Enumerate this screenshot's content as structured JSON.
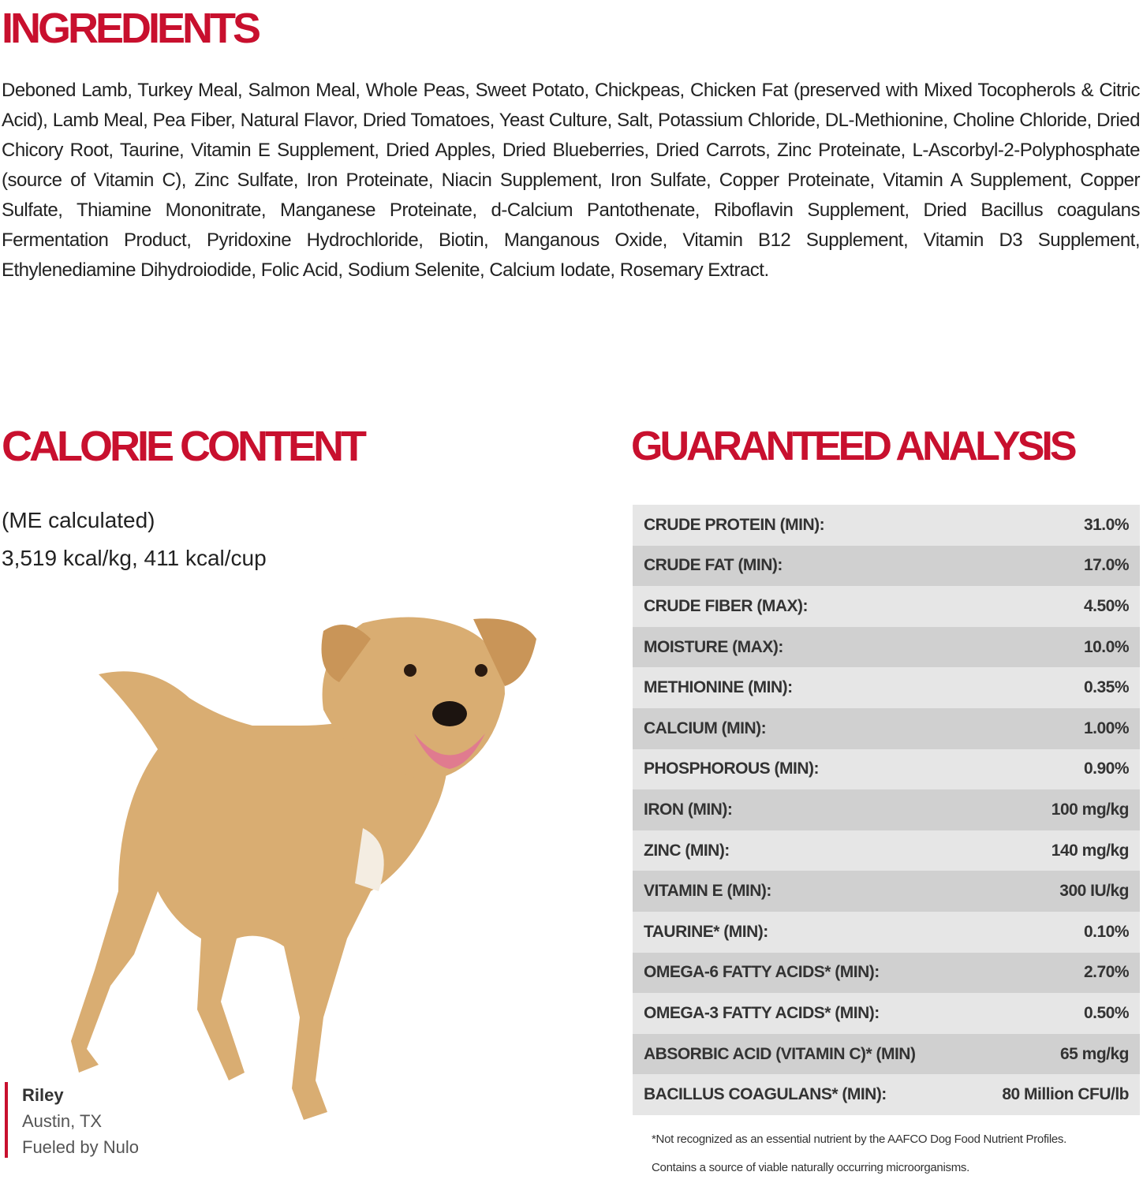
{
  "ingredients": {
    "title": "INGREDIENTS",
    "text": "Deboned Lamb, Turkey Meal, Salmon Meal, Whole Peas, Sweet Potato, Chickpeas, Chicken Fat (preserved with Mixed Tocopherols & Citric Acid), Lamb Meal, Pea Fiber, Natural Flavor, Dried Tomatoes, Yeast Culture, Salt, Potassium Chloride, DL-Methionine, Choline Chloride, Dried Chicory Root, Taurine, Vitamin E Supplement, Dried Apples, Dried Blueberries, Dried Carrots, Zinc Proteinate, L-Ascorbyl-2-Polyphosphate (source of Vitamin C), Zinc Sulfate, Iron Proteinate, Niacin Supplement, Iron Sulfate, Copper Proteinate, Vitamin A Supplement, Copper Sulfate, Thiamine Mononitrate, Manganese Proteinate, d-Calcium Pantothenate, Riboflavin Supplement, Dried Bacillus coagulans Fermentation Product, Pyridoxine Hydrochloride, Biotin, Manganous Oxide, Vitamin B12 Supplement, Vitamin D3 Supplement, Ethylenediamine Dihydroiodide, Folic Acid, Sodium Selenite, Calcium Iodate, Rosemary Extract."
  },
  "calorie": {
    "title": "CALORIE CONTENT",
    "line1": "(ME calculated)",
    "line2": "3,519 kcal/kg, 411 kcal/cup"
  },
  "analysis": {
    "title": "GUARANTEED ANALYSIS",
    "rows": [
      {
        "label": "CRUDE PROTEIN (MIN):",
        "value": "31.0%"
      },
      {
        "label": "CRUDE FAT (MIN):",
        "value": "17.0%"
      },
      {
        "label": "CRUDE FIBER (MAX):",
        "value": "4.50%"
      },
      {
        "label": "MOISTURE (MAX):",
        "value": "10.0%"
      },
      {
        "label": "METHIONINE (MIN):",
        "value": "0.35%"
      },
      {
        "label": "CALCIUM (MIN):",
        "value": "1.00%"
      },
      {
        "label": "PHOSPHOROUS (MIN):",
        "value": "0.90%"
      },
      {
        "label": "IRON (MIN):",
        "value": "100 mg/kg"
      },
      {
        "label": "ZINC (MIN):",
        "value": "140 mg/kg"
      },
      {
        "label": "VITAMIN E (MIN):",
        "value": "300 IU/kg"
      },
      {
        "label": "TAURINE* (MIN):",
        "value": "0.10%"
      },
      {
        "label": "OMEGA-6 FATTY ACIDS* (MIN):",
        "value": "2.70%"
      },
      {
        "label": "OMEGA-3 FATTY ACIDS* (MIN):",
        "value": "0.50%"
      },
      {
        "label": "ABSORBIC ACID (VITAMIN C)* (MIN)",
        "value": "65 mg/kg"
      },
      {
        "label": "BACILLUS COAGULANS* (MIN):",
        "value": "80 Million CFU/lb"
      }
    ],
    "footnote1": "*Not recognized as an essential nutrient by the AAFCO Dog Food Nutrient Profiles.",
    "footnote2": "Contains a source of viable naturally occurring microorganisms."
  },
  "caption": {
    "name": "Riley",
    "location": "Austin, TX",
    "tagline": "Fueled by Nulo"
  },
  "colors": {
    "accent": "#c8102e",
    "row_light": "#e6e6e6",
    "row_dark": "#d0d0d0"
  }
}
